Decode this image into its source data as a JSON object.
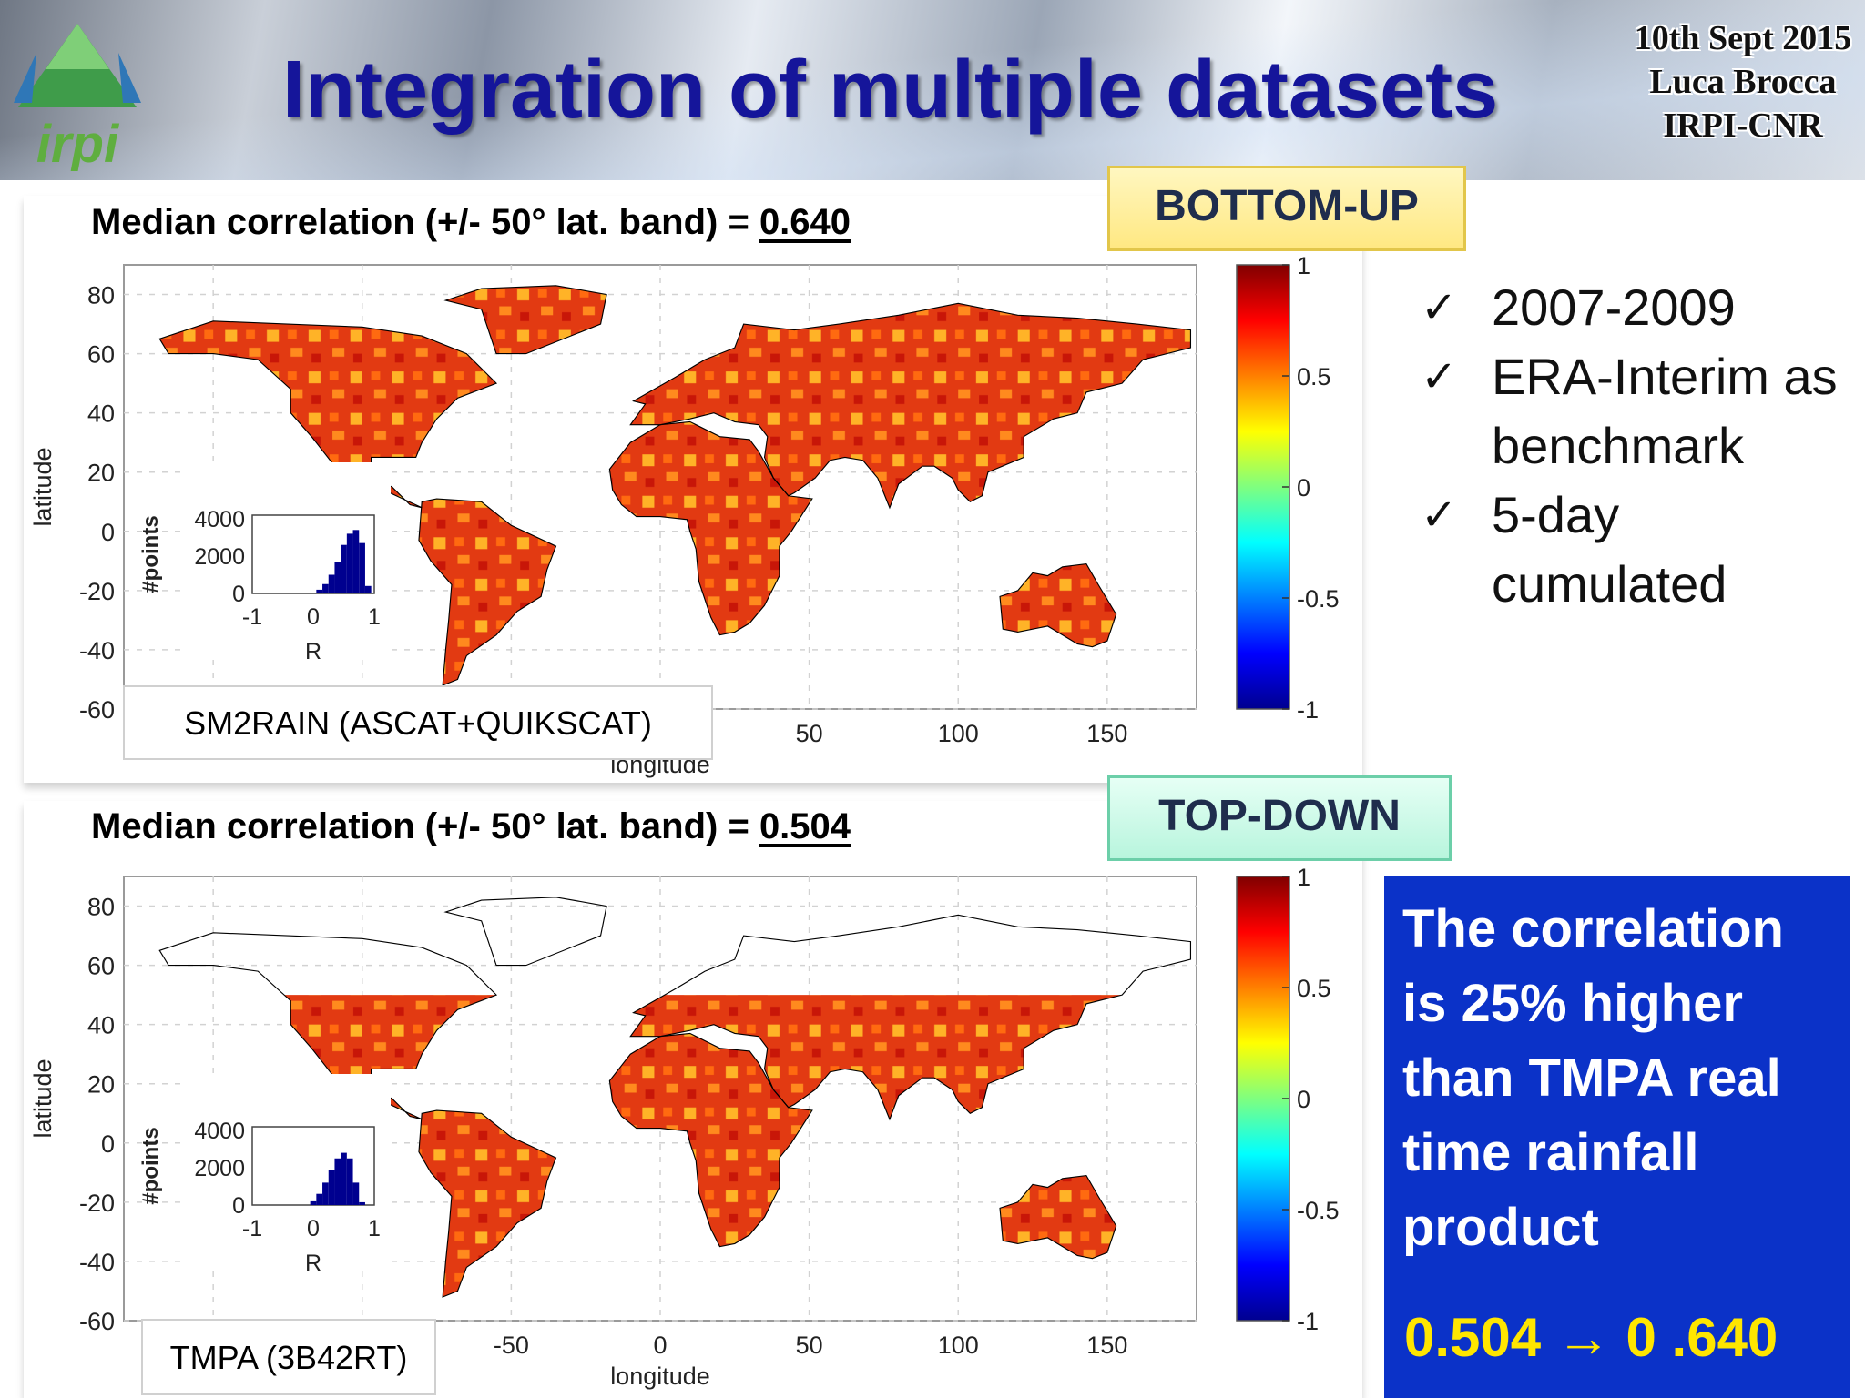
{
  "header": {
    "logo_text": "irpi",
    "title": "Integration of multiple datasets",
    "info": [
      "10th Sept 2015",
      "Luca Brocca",
      "IRPI-CNR"
    ]
  },
  "colors": {
    "title": "#15159a",
    "callout_bg": "#0b32c8",
    "callout_value": "#ffe600",
    "bottom_up_bg": "#ffe882",
    "top_down_bg": "#b8f5dd"
  },
  "tags": {
    "bottom_up": "BOTTOM-UP",
    "top_down": "TOP-DOWN"
  },
  "panels": [
    {
      "heading_prefix": "Median correlation (+/- 50° lat. band) = ",
      "heading_value": "0.640",
      "product_label": "SM2RAIN (ASCAT+QUIKSCAT)"
    },
    {
      "heading_prefix": "Median correlation (+/- 50° lat. band) = ",
      "heading_value": "0.504",
      "product_label": "TMPA (3B42RT)"
    }
  ],
  "notes": [
    "2007-2009",
    "ERA-Interim as benchmark",
    "5-day cumulated"
  ],
  "callout": {
    "message": "The correlation is 25% higher than TMPA real time rainfall product",
    "value": "0.504 → 0 .640"
  },
  "chart_data": [
    {
      "type": "heatmap",
      "title": "Median correlation (+/- 50° lat. band) = 0.640",
      "xlabel": "longitude",
      "ylabel": "latitude",
      "xlim": [
        -180,
        180
      ],
      "ylim": [
        -60,
        90
      ],
      "xticks": [
        50,
        100,
        150
      ],
      "yticks": [
        80,
        60,
        40,
        20,
        0,
        -20,
        -40,
        -60
      ],
      "grid": true,
      "colorbar": {
        "range": [
          -1,
          1
        ],
        "ticks": [
          1,
          0.5,
          0,
          -0.5,
          -1
        ],
        "colormap": "jet"
      },
      "coverage_lat": [
        -60,
        90
      ],
      "legend": "SM2RAIN (ASCAT+QUIKSCAT)",
      "histogram": {
        "xlabel": "R",
        "ylabel": "#points",
        "xticks": [
          -1,
          0,
          1
        ],
        "yticks": [
          0,
          2000,
          4000
        ],
        "bins": [
          0.1,
          0.2,
          0.3,
          0.4,
          0.5,
          0.6,
          0.7,
          0.8,
          0.9
        ],
        "counts": [
          200,
          500,
          1000,
          1700,
          2600,
          3200,
          3400,
          2700,
          400
        ]
      }
    },
    {
      "type": "heatmap",
      "title": "Median correlation (+/- 50° lat. band) = 0.504",
      "xlabel": "longitude",
      "ylabel": "latitude",
      "xlim": [
        -180,
        180
      ],
      "ylim": [
        -60,
        90
      ],
      "xticks": [
        -50,
        0,
        50,
        100,
        150
      ],
      "yticks": [
        80,
        60,
        40,
        20,
        0,
        -20,
        -40,
        -60
      ],
      "grid": true,
      "colorbar": {
        "range": [
          -1,
          1
        ],
        "ticks": [
          1,
          0.5,
          0,
          -0.5,
          -1
        ],
        "colormap": "jet"
      },
      "coverage_lat": [
        -60,
        50
      ],
      "legend": "TMPA (3B42RT)",
      "histogram": {
        "xlabel": "R",
        "ylabel": "#points",
        "xticks": [
          -1,
          0,
          1
        ],
        "yticks": [
          0,
          2000,
          4000
        ],
        "bins": [
          0.0,
          0.1,
          0.2,
          0.3,
          0.4,
          0.5,
          0.6,
          0.7,
          0.8
        ],
        "counts": [
          200,
          600,
          1200,
          1900,
          2500,
          2800,
          2500,
          1200,
          150
        ]
      }
    }
  ]
}
